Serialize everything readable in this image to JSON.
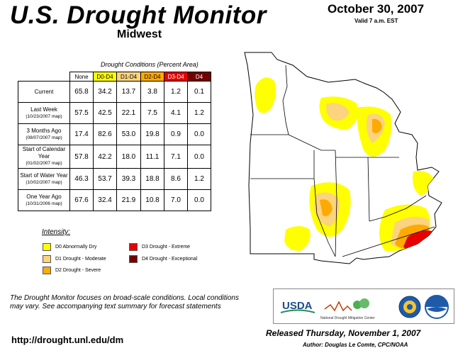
{
  "header": {
    "title": "U.S. Drought Monitor",
    "subtitle": "Midwest",
    "date": "October 30, 2007",
    "valid": "Valid 7 a.m. EST"
  },
  "table": {
    "caption": "Drought Conditions (Percent Area)",
    "columns": [
      "None",
      "D0-D4",
      "D1-D4",
      "D2-D4",
      "D3-D4",
      "D4"
    ],
    "column_colors": [
      "#ffffff",
      "#ffff00",
      "#fcd37f",
      "#ffaa00",
      "#e60000",
      "#730000"
    ],
    "rows": [
      {
        "label": "Current",
        "sub": "",
        "values": [
          "65.8",
          "34.2",
          "13.7",
          "3.8",
          "1.2",
          "0.1"
        ]
      },
      {
        "label": "Last Week",
        "sub": "(10/23/2007 map)",
        "values": [
          "57.5",
          "42.5",
          "22.1",
          "7.5",
          "4.1",
          "1.2"
        ]
      },
      {
        "label": "3 Months Ago",
        "sub": "(08/07/2007 map)",
        "values": [
          "17.4",
          "82.6",
          "53.0",
          "19.8",
          "0.9",
          "0.0"
        ]
      },
      {
        "label": "Start of Calendar Year",
        "sub": "(01/02/2007 map)",
        "values": [
          "57.8",
          "42.2",
          "18.0",
          "11.1",
          "7.1",
          "0.0"
        ]
      },
      {
        "label": "Start of Water Year",
        "sub": "(10/02/2007 map)",
        "values": [
          "46.3",
          "53.7",
          "39.3",
          "18.8",
          "8.6",
          "1.2"
        ]
      },
      {
        "label": "One Year Ago",
        "sub": "(10/31/2006 map)",
        "values": [
          "67.6",
          "32.4",
          "21.9",
          "10.8",
          "7.0",
          "0.0"
        ]
      }
    ]
  },
  "legend": {
    "title": "Intensity:",
    "items": [
      {
        "label": "D0 Abnormally Dry",
        "color": "#ffff00"
      },
      {
        "label": "D1 Drought - Moderate",
        "color": "#fcd37f"
      },
      {
        "label": "D2 Drought - Severe",
        "color": "#ffaa00"
      },
      {
        "label": "D3 Drought - Extreme",
        "color": "#e60000"
      },
      {
        "label": "D4 Drought - Exceptional",
        "color": "#730000"
      }
    ]
  },
  "note": "The Drought Monitor focuses on broad-scale conditions. Local conditions may vary. See accompanying text summary for forecast statements",
  "url": "http://drought.unl.edu/dm",
  "logos": {
    "usda": "USDA",
    "ndmc": "National Drought Mitigation Center"
  },
  "released": "Released Thursday, November 1, 2007",
  "author": "Author: Douglas Le Comte, CPC/NOAA"
}
